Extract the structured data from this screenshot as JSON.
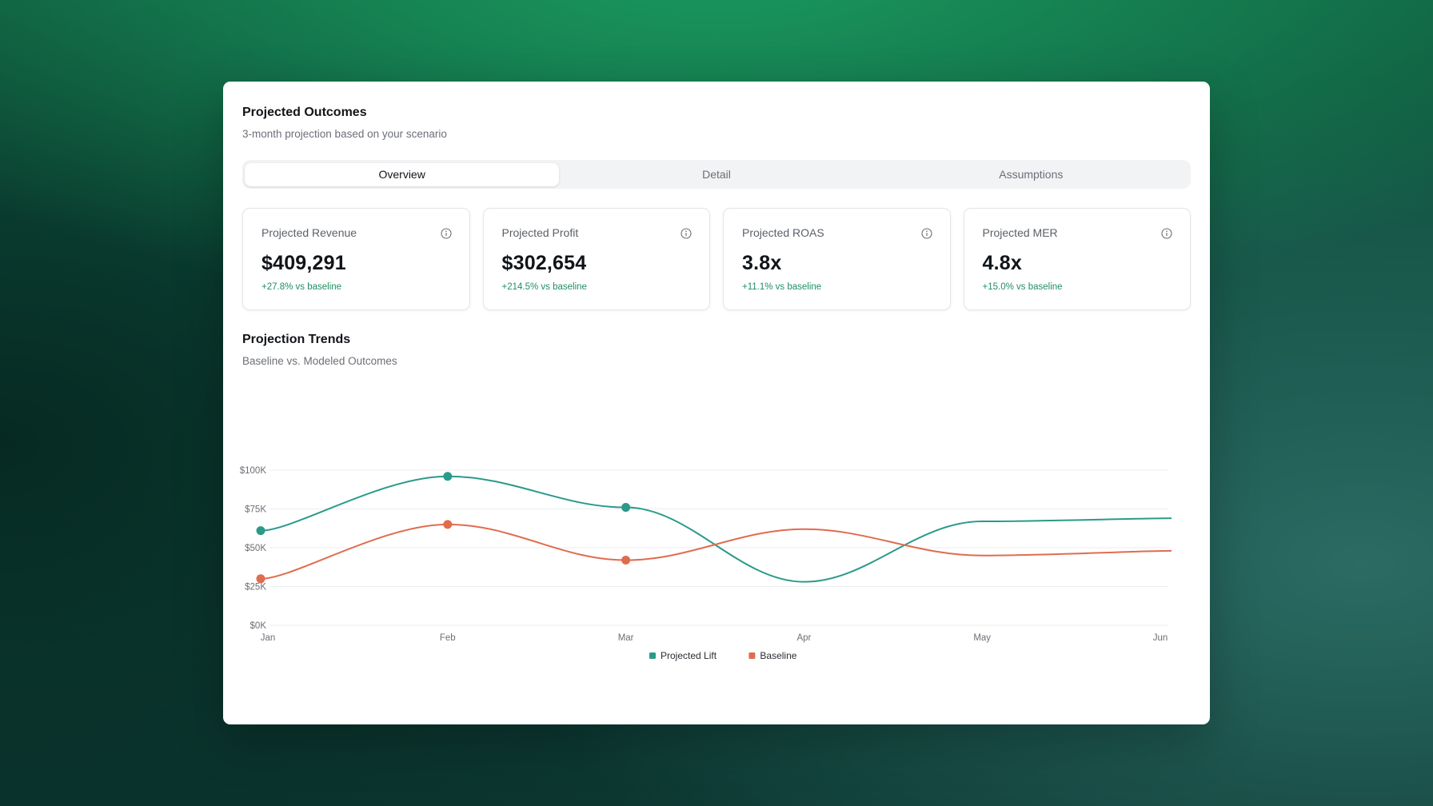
{
  "header": {
    "title": "Projected Outcomes",
    "subtitle": "3-month projection based on your scenario"
  },
  "tabs": [
    {
      "label": "Overview",
      "active": true
    },
    {
      "label": "Detail",
      "active": false
    },
    {
      "label": "Assumptions",
      "active": false
    }
  ],
  "kpis": [
    {
      "label": "Projected Revenue",
      "value": "$409,291",
      "delta": "+27.8% vs baseline",
      "icon": "info-icon"
    },
    {
      "label": "Projected Profit",
      "value": "$302,654",
      "delta": "+214.5% vs baseline",
      "icon": "info-icon"
    },
    {
      "label": "Projected ROAS",
      "value": "3.8x",
      "delta": "+11.1% vs baseline",
      "icon": "info-icon"
    },
    {
      "label": "Projected MER",
      "value": "4.8x",
      "delta": "+15.0% vs baseline",
      "icon": "info-icon"
    }
  ],
  "trends": {
    "title": "Projection Trends",
    "subtitle": "Baseline vs. Modeled Outcomes"
  },
  "colors": {
    "projected_lift": "#2a9a8a",
    "baseline": "#e06c4e",
    "delta_positive": "#1f8f62"
  },
  "chart_data": {
    "type": "line",
    "categories": [
      "Jan",
      "Feb",
      "Mar",
      "Apr",
      "May",
      "Jun"
    ],
    "ylim": [
      0,
      100000
    ],
    "yticks": [
      {
        "value": 0,
        "label": "$0K"
      },
      {
        "value": 25000,
        "label": "$25K"
      },
      {
        "value": 50000,
        "label": "$50K"
      },
      {
        "value": 75000,
        "label": "$75K"
      },
      {
        "value": 100000,
        "label": "$100K"
      }
    ],
    "grid": true,
    "legend": "bottom-center",
    "series": [
      {
        "name": "Projected Lift",
        "color": "#2a9a8a",
        "values": [
          61000,
          96000,
          76000,
          28000,
          67000,
          69000
        ],
        "markers": [
          0,
          1,
          2
        ]
      },
      {
        "name": "Baseline",
        "color": "#e06c4e",
        "values": [
          30000,
          65000,
          42000,
          62000,
          45000,
          48000
        ],
        "markers": [
          0,
          1,
          2
        ]
      }
    ]
  }
}
